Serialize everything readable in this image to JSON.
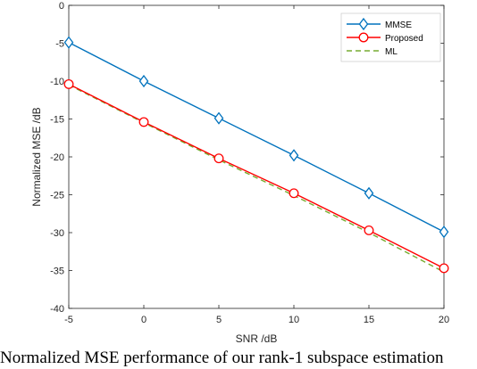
{
  "chart_data": {
    "type": "line",
    "xlabel": "SNR /dB",
    "ylabel": "Normalized MSE /dB",
    "xlim": [
      -5,
      20
    ],
    "ylim": [
      -40,
      0
    ],
    "xticks": [
      -5,
      0,
      5,
      10,
      15,
      20
    ],
    "yticks": [
      0,
      -5,
      -10,
      -15,
      -20,
      -25,
      -30,
      -35,
      -40
    ],
    "grid": false,
    "legend_position": "top-right",
    "x": [
      -5,
      0,
      5,
      10,
      15,
      20
    ],
    "series": [
      {
        "name": "MMSE",
        "values": [
          -4.9,
          -10.0,
          -14.9,
          -19.8,
          -24.8,
          -29.9
        ],
        "color": "#0072BD",
        "marker": "diamond",
        "line": "solid"
      },
      {
        "name": "Proposed",
        "values": [
          -10.4,
          -15.4,
          -20.2,
          -24.8,
          -29.7,
          -34.7
        ],
        "color": "#FF0000",
        "marker": "circle",
        "line": "solid"
      },
      {
        "name": "ML",
        "values": [
          -10.5,
          -15.5,
          -20.4,
          -25.1,
          -30.0,
          -35.2
        ],
        "color": "#77AC30",
        "marker": "none",
        "line": "dashed"
      }
    ]
  },
  "caption": "Normalized MSE performance of our rank-1 subspace estimation"
}
